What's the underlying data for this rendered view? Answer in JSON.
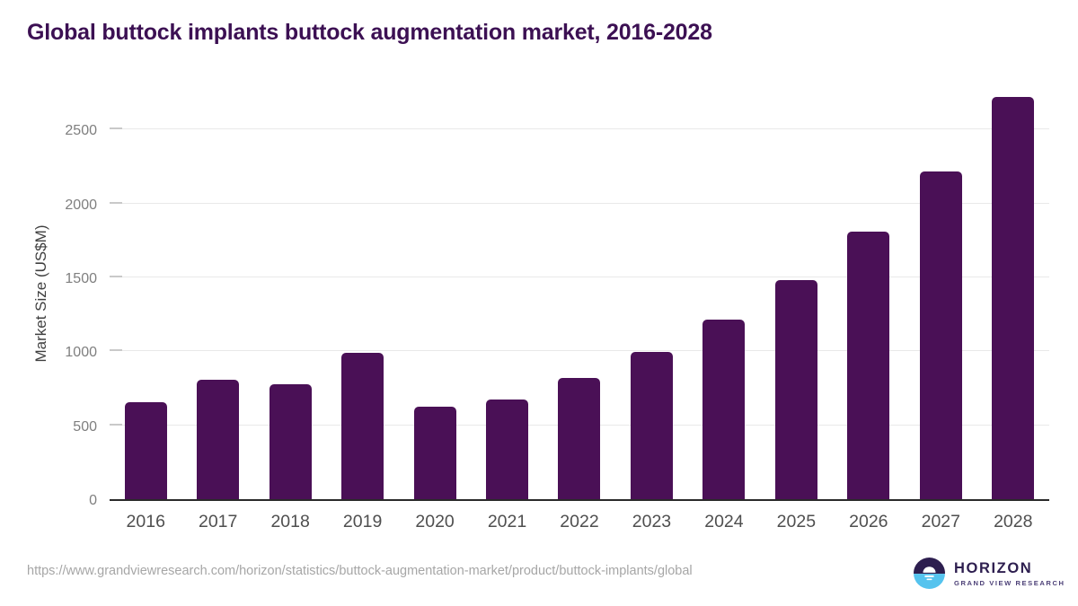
{
  "header": {
    "title": "Global buttock implants buttock augmentation market, 2016-2028"
  },
  "chart_data": {
    "type": "bar",
    "title": "Global buttock implants buttock augmentation market, 2016-2028",
    "categories": [
      "2016",
      "2017",
      "2018",
      "2019",
      "2020",
      "2021",
      "2022",
      "2023",
      "2024",
      "2025",
      "2026",
      "2027",
      "2028"
    ],
    "values": [
      655,
      805,
      775,
      990,
      625,
      675,
      820,
      995,
      1215,
      1480,
      1810,
      2220,
      2720
    ],
    "series_name": "Market Size",
    "xlabel": "",
    "ylabel": "Market Size (US$M)",
    "yticks": [
      0,
      500,
      1000,
      1500,
      2000,
      2500
    ],
    "ylim": [
      0,
      2800
    ],
    "grid": "horizontal",
    "legend_position": "none",
    "bar_color": "#4a1056"
  },
  "footer": {
    "source_url": "https://www.grandviewresearch.com/horizon/statistics/buttock-augmentation-market/product/buttock-implants/global",
    "logo": {
      "icon": "horizon-sunrise-icon",
      "brand": "HORIZON",
      "tagline": "GRAND VIEW RESEARCH"
    }
  },
  "colors": {
    "background": "#ffffff",
    "bar": "#4a1056",
    "title_text": "#3c1053",
    "y_axis_title": "#3f3f3f",
    "y_tick_label": "#7f7f7f",
    "x_tick_label": "#4f4f4f",
    "gridline": "#e9e9e9",
    "tick_stub": "#c9c9c9",
    "baseline": "#2a2a2a",
    "url_text": "#a6a6a6",
    "logo_dark_purple": "#2d1e4f",
    "logo_sky_blue": "#55c3ee",
    "logo_tagline": "#4d4178"
  }
}
